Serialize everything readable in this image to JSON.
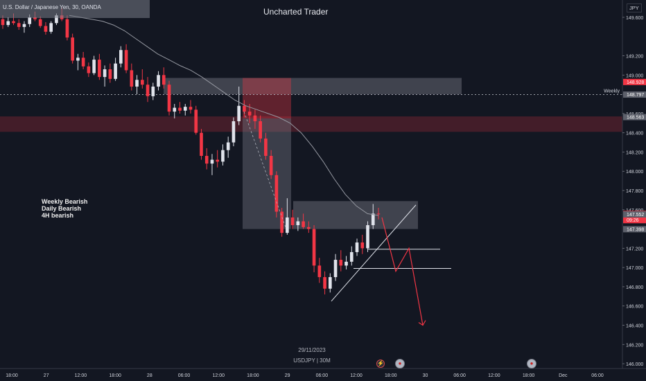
{
  "header": {
    "symbol_description": "U.S. Dollar / Japanese Yen, 30, OANDA"
  },
  "watermark": "Uncharted Trader",
  "currency": "JPY",
  "notes": [
    "Weekly Bearish",
    "Daily Bearish",
    "4H bearish"
  ],
  "footer": {
    "date": "29/11/2023",
    "symbol": "USDJPY | 30M"
  },
  "events": [
    {
      "name": "economic-event-icon",
      "glyph": "⚡"
    },
    {
      "name": "us-flag-event-icon",
      "glyph": "●"
    },
    {
      "name": "us-flag-event-icon",
      "glyph": "●"
    }
  ],
  "chart_data": {
    "type": "candlestick",
    "ylim": [
      145.95,
      149.78
    ],
    "y_ticks": [
      "149.600",
      "149.200",
      "149.000",
      "148.800",
      "148.600",
      "148.400",
      "148.200",
      "148.000",
      "147.800",
      "147.600",
      "147.200",
      "147.000",
      "146.800",
      "146.600",
      "146.400",
      "146.200",
      "146.000"
    ],
    "x_ticks": [
      "18:00",
      "27",
      "12:00",
      "18:00",
      "28",
      "06:00",
      "12:00",
      "18:00",
      "29",
      "06:00",
      "12:00",
      "18:00",
      "30",
      "06:00",
      "12:00",
      "18:00",
      "Dec",
      "06:00"
    ],
    "price_labels": [
      {
        "value": "148.928",
        "color": "#f23645"
      },
      {
        "value": "148.797",
        "color": "#5d606b"
      },
      {
        "value": "148.563",
        "color": "#5d606b"
      },
      {
        "value": "147.557",
        "color": "#f23645",
        "sub": "09:26"
      },
      {
        "value": "147.552",
        "color": "#5d606b"
      },
      {
        "value": "147.398",
        "color": "#5d606b"
      }
    ],
    "weekly_level": {
      "label": "Weekly",
      "value": 148.797
    },
    "zones": [
      {
        "kind": "supply",
        "from": 148.41,
        "to": 148.57,
        "color": "#f23645"
      },
      {
        "kind": "weekly-zone",
        "from": 148.8,
        "to": 148.97
      },
      {
        "kind": "range-box",
        "from": 147.4,
        "to": 147.69
      }
    ],
    "support_levels": [
      147.19,
      146.99
    ],
    "candles": [
      [
        149.58,
        149.62,
        149.48,
        149.52
      ],
      [
        149.52,
        149.6,
        149.5,
        149.56
      ],
      [
        149.56,
        149.64,
        149.52,
        149.54
      ],
      [
        149.54,
        149.58,
        149.47,
        149.5
      ],
      [
        149.5,
        149.56,
        149.44,
        149.53
      ],
      [
        149.53,
        149.63,
        149.5,
        149.6
      ],
      [
        149.6,
        149.66,
        149.56,
        149.58
      ],
      [
        149.58,
        149.61,
        149.49,
        149.51
      ],
      [
        149.51,
        149.55,
        149.42,
        149.45
      ],
      [
        149.45,
        149.56,
        149.43,
        149.54
      ],
      [
        149.54,
        149.64,
        149.52,
        149.62
      ],
      [
        149.62,
        149.7,
        149.56,
        149.58
      ],
      [
        149.58,
        149.62,
        149.36,
        149.39
      ],
      [
        149.39,
        149.43,
        149.12,
        149.15
      ],
      [
        149.15,
        149.22,
        149.05,
        149.18
      ],
      [
        149.18,
        149.24,
        149.06,
        149.09
      ],
      [
        149.09,
        149.13,
        148.98,
        149.02
      ],
      [
        149.02,
        149.2,
        149.0,
        149.16
      ],
      [
        149.16,
        149.22,
        148.95,
        148.98
      ],
      [
        148.98,
        149.1,
        148.88,
        149.06
      ],
      [
        149.06,
        149.12,
        148.92,
        148.96
      ],
      [
        148.96,
        149.18,
        148.94,
        149.12
      ],
      [
        149.12,
        149.3,
        149.08,
        149.26
      ],
      [
        149.26,
        149.32,
        149.02,
        149.05
      ],
      [
        149.05,
        149.12,
        148.84,
        148.88
      ],
      [
        148.88,
        149.0,
        148.8,
        148.95
      ],
      [
        148.95,
        149.06,
        148.86,
        148.9
      ],
      [
        148.9,
        148.98,
        148.72,
        148.78
      ],
      [
        148.78,
        148.92,
        148.74,
        148.88
      ],
      [
        148.88,
        149.04,
        148.84,
        149.0
      ],
      [
        149.0,
        149.08,
        148.86,
        148.9
      ],
      [
        148.9,
        148.94,
        148.58,
        148.62
      ],
      [
        148.62,
        148.7,
        148.55,
        148.66
      ],
      [
        148.66,
        148.72,
        148.6,
        148.63
      ],
      [
        148.63,
        148.7,
        148.58,
        148.67
      ],
      [
        148.67,
        148.74,
        148.6,
        148.64
      ],
      [
        148.64,
        148.68,
        148.38,
        148.4
      ],
      [
        148.4,
        148.44,
        148.12,
        148.16
      ],
      [
        148.16,
        148.24,
        148.02,
        148.08
      ],
      [
        148.08,
        148.18,
        147.96,
        148.12
      ],
      [
        148.12,
        148.22,
        148.04,
        148.1
      ],
      [
        148.1,
        148.28,
        148.06,
        148.22
      ],
      [
        148.22,
        148.36,
        148.14,
        148.3
      ],
      [
        148.3,
        148.56,
        148.26,
        148.52
      ],
      [
        148.52,
        148.88,
        148.48,
        148.68
      ],
      [
        148.68,
        148.74,
        148.56,
        148.62
      ],
      [
        148.62,
        148.7,
        148.5,
        148.58
      ],
      [
        148.58,
        148.64,
        148.44,
        148.52
      ],
      [
        148.52,
        148.58,
        148.3,
        148.34
      ],
      [
        148.34,
        148.4,
        148.12,
        148.16
      ],
      [
        148.16,
        148.22,
        147.92,
        147.96
      ],
      [
        147.96,
        148.0,
        147.52,
        147.58
      ],
      [
        147.58,
        147.62,
        147.32,
        147.36
      ],
      [
        147.36,
        147.72,
        147.34,
        147.52
      ],
      [
        147.52,
        147.6,
        147.4,
        147.44
      ],
      [
        147.44,
        147.52,
        147.38,
        147.48
      ],
      [
        147.48,
        147.56,
        147.4,
        147.42
      ],
      [
        147.42,
        147.48,
        147.36,
        147.4
      ],
      [
        147.4,
        147.44,
        146.95,
        147.02
      ],
      [
        147.02,
        147.1,
        146.84,
        146.9
      ],
      [
        146.9,
        146.96,
        146.72,
        146.78
      ],
      [
        146.78,
        146.94,
        146.74,
        146.9
      ],
      [
        146.9,
        147.14,
        146.86,
        147.08
      ],
      [
        147.08,
        147.18,
        146.96,
        147.02
      ],
      [
        147.02,
        147.12,
        146.98,
        147.06
      ],
      [
        147.06,
        147.22,
        147.02,
        147.16
      ],
      [
        147.16,
        147.3,
        147.12,
        147.26
      ],
      [
        147.26,
        147.34,
        147.14,
        147.2
      ],
      [
        147.2,
        147.48,
        147.16,
        147.44
      ],
      [
        147.44,
        147.66,
        147.4,
        147.56
      ],
      [
        147.56,
        147.62,
        147.5,
        147.557
      ]
    ],
    "moving_average": [
      149.62,
      149.6,
      149.58,
      149.56,
      149.52,
      149.46,
      149.38,
      149.3,
      149.22,
      149.16,
      149.1,
      149.05,
      148.98,
      148.9,
      148.82,
      148.74,
      148.68,
      148.64,
      148.6,
      148.56,
      148.5,
      148.4,
      148.26,
      148.1,
      147.92,
      147.76,
      147.64,
      147.56,
      147.54
    ]
  }
}
